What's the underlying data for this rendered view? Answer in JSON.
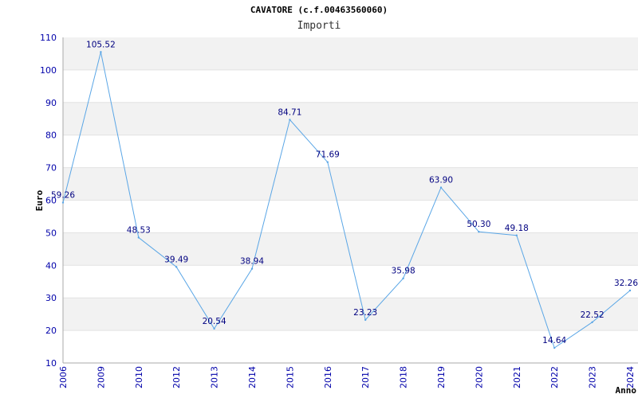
{
  "chart_data": {
    "type": "line",
    "title": "CAVATORE (c.f.00463560060)",
    "subtitle": "Importi",
    "ylabel": "Euro",
    "xlabel": "Anno",
    "ylim": [
      10,
      110
    ],
    "yticks": [
      10,
      20,
      30,
      40,
      50,
      60,
      70,
      80,
      90,
      100,
      110
    ],
    "categories": [
      "2006",
      "2009",
      "2010",
      "2012",
      "2013",
      "2014",
      "2015",
      "2016",
      "2017",
      "2018",
      "2019",
      "2020",
      "2021",
      "2022",
      "2023",
      "2024"
    ],
    "values": [
      59.26,
      105.52,
      48.53,
      39.49,
      20.54,
      38.94,
      84.71,
      71.69,
      23.23,
      35.98,
      63.9,
      50.3,
      49.18,
      14.64,
      22.52,
      32.26
    ],
    "labels": [
      "59.26",
      "105.52",
      "48.53",
      "39.49",
      "20.54",
      "38.94",
      "84.71",
      "71.69",
      "23.23",
      "35.98",
      "63.90",
      "50.30",
      "49.18",
      "14.64",
      "22.52",
      "32.26"
    ],
    "grid": "horizontal alternating bands",
    "colors": {
      "line": "#5aa6e6",
      "band": "#f2f2f2",
      "axis_text": "#0000aa",
      "data_label": "#000080"
    }
  }
}
